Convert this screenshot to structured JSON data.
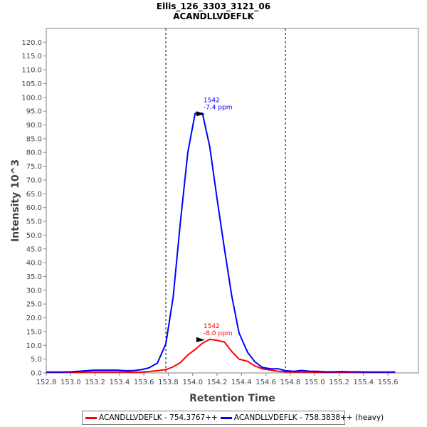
{
  "chart_data": {
    "type": "line",
    "title": "Ellis_126_3303_3121_06",
    "subtitle": "ACANDLLVDEFLK",
    "xlabel": "Retention Time",
    "ylabel": "Intensity 10^3",
    "xlim": [
      152.8,
      155.85
    ],
    "ylim": [
      0,
      125
    ],
    "x_ticks": [
      "152.8",
      "153.0",
      "153.2",
      "153.4",
      "153.6",
      "153.8",
      "154.0",
      "154.2",
      "154.4",
      "154.6",
      "154.8",
      "155.0",
      "155.2",
      "155.4",
      "155.6"
    ],
    "y_ticks": [
      "0.0",
      "5.0",
      "10.0",
      "15.0",
      "20.0",
      "25.0",
      "30.0",
      "35.0",
      "40.0",
      "45.0",
      "50.0",
      "55.0",
      "60.0",
      "65.0",
      "70.0",
      "75.0",
      "80.0",
      "85.0",
      "90.0",
      "95.0",
      "100.0",
      "105.0",
      "110.0",
      "115.0",
      "120.0"
    ],
    "boundaries": [
      153.78,
      154.76
    ],
    "series": [
      {
        "name": "ACANDLLVDEFLK - 754.3767++",
        "color": "#ff0000",
        "x": [
          152.8,
          152.86,
          152.93,
          153.0,
          153.06,
          153.13,
          153.19,
          153.25,
          153.32,
          153.38,
          153.45,
          153.51,
          153.58,
          153.64,
          153.71,
          153.78,
          153.84,
          153.9,
          153.96,
          154.02,
          154.08,
          154.14,
          154.2,
          154.26,
          154.32,
          154.38,
          154.45,
          154.51,
          154.57,
          154.64,
          154.7,
          154.76,
          154.83,
          154.89,
          154.96,
          155.02,
          155.08,
          155.15,
          155.22,
          155.28,
          155.34,
          155.41,
          155.47,
          155.54,
          155.6,
          155.66
        ],
        "y": [
          0.2,
          0.2,
          0.2,
          0.2,
          0.2,
          0.3,
          0.3,
          0.3,
          0.3,
          0.3,
          0.3,
          0.2,
          0.3,
          0.5,
          0.8,
          1.2,
          2.2,
          3.8,
          6.5,
          8.5,
          10.8,
          12.2,
          11.8,
          11.2,
          7.8,
          5.0,
          4.2,
          2.5,
          1.5,
          1.0,
          0.6,
          0.4,
          0.3,
          0.3,
          0.3,
          0.2,
          0.2,
          0.2,
          0.2,
          0.2,
          0.2,
          0.2,
          0.2,
          0.2,
          0.2,
          0.2
        ],
        "annotation": {
          "x": 154.1,
          "y": 12.2,
          "lines": [
            "1542",
            "-8.0 ppm"
          ]
        }
      },
      {
        "name": "ACANDLLVDEFLK - 758.3838++ (heavy)",
        "color": "#0000ff",
        "x": [
          152.8,
          152.86,
          152.93,
          153.0,
          153.06,
          153.13,
          153.19,
          153.25,
          153.32,
          153.38,
          153.45,
          153.51,
          153.58,
          153.64,
          153.71,
          153.78,
          153.84,
          153.9,
          153.96,
          154.02,
          154.08,
          154.14,
          154.2,
          154.26,
          154.32,
          154.38,
          154.45,
          154.51,
          154.57,
          154.64,
          154.7,
          154.76,
          154.83,
          154.89,
          154.96,
          155.02,
          155.08,
          155.15,
          155.22,
          155.28,
          155.34,
          155.41,
          155.47,
          155.54,
          155.6,
          155.66
        ],
        "y": [
          0.3,
          0.3,
          0.3,
          0.4,
          0.6,
          0.8,
          1.0,
          1.0,
          1.0,
          1.0,
          0.8,
          0.8,
          1.2,
          1.8,
          3.5,
          10.5,
          27.5,
          55.0,
          80.0,
          94.2,
          94.2,
          82.0,
          63.0,
          45.0,
          28.0,
          14.5,
          7.5,
          4.0,
          2.0,
          1.5,
          1.5,
          0.8,
          0.6,
          0.9,
          0.6,
          0.6,
          0.4,
          0.4,
          0.5,
          0.4,
          0.4,
          0.3,
          0.3,
          0.3,
          0.3,
          0.3
        ],
        "annotation": {
          "x": 154.1,
          "y": 94.2,
          "lines": [
            "1542",
            "-7.4 ppm"
          ]
        }
      }
    ],
    "legend": {
      "position": "bottom"
    }
  }
}
